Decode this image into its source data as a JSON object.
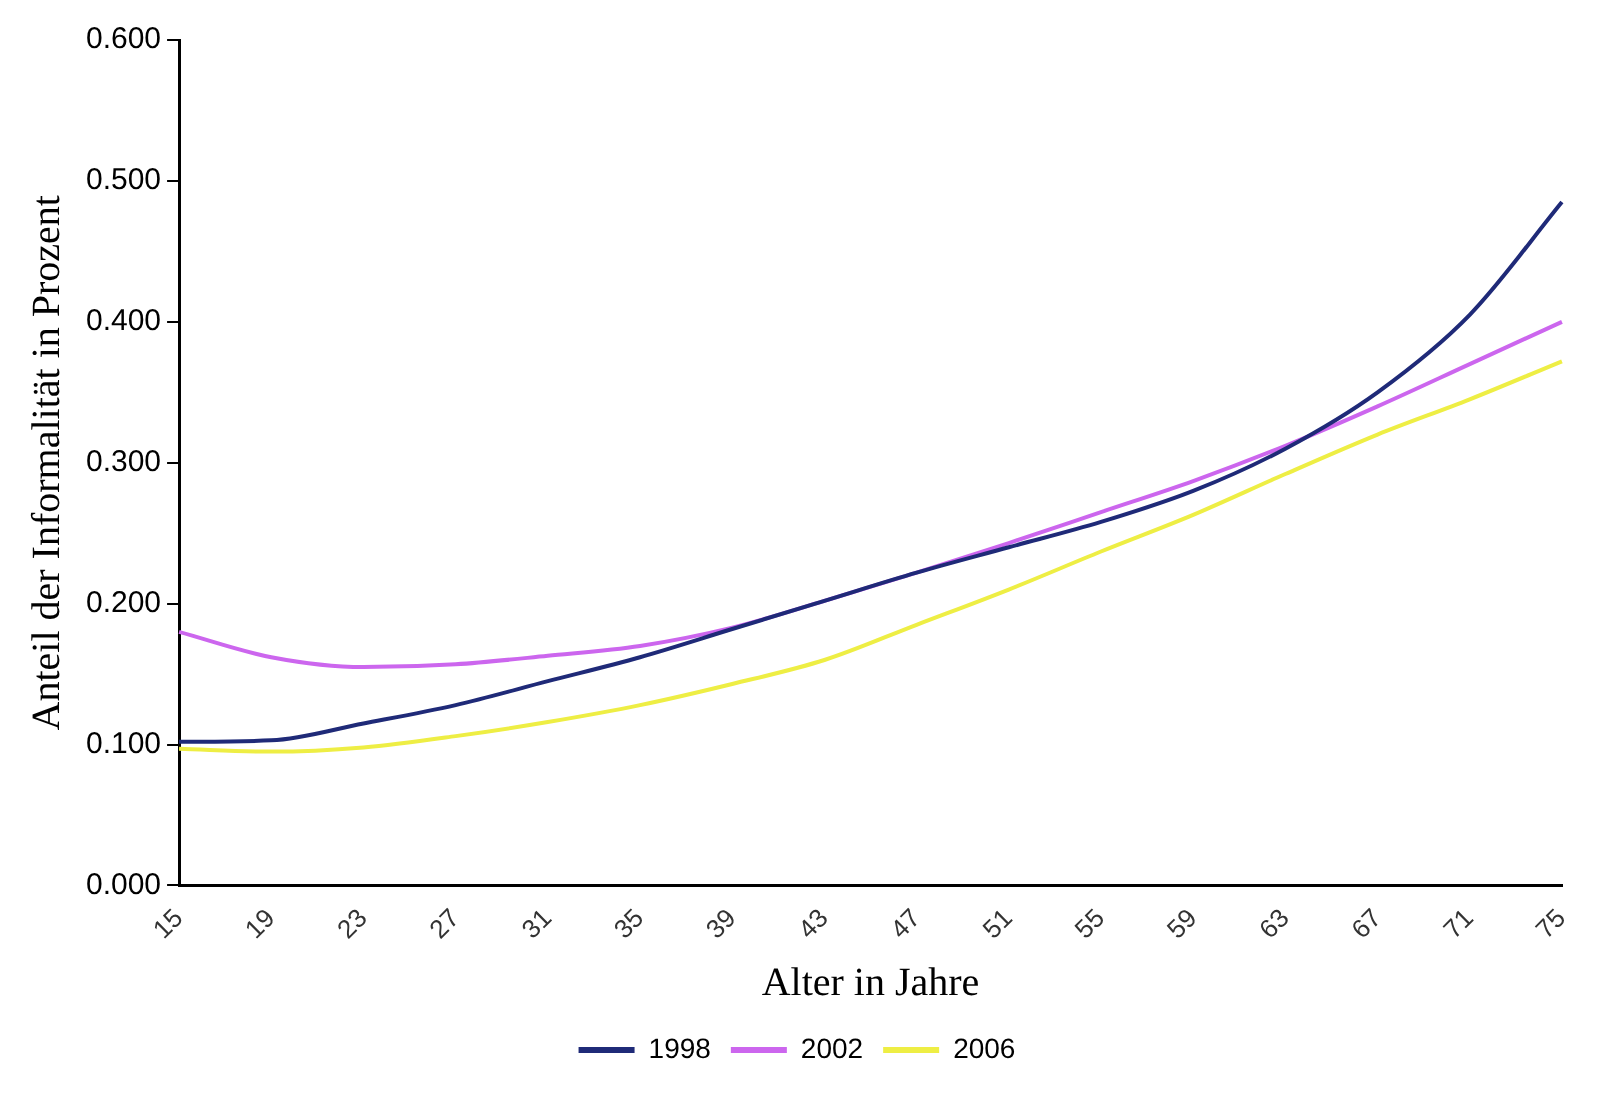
{
  "chart_data": {
    "type": "line",
    "xlabel": "Alter in Jahre",
    "ylabel": "Anteil der Informalität in Prozent",
    "categories": [
      "15",
      "19",
      "23",
      "27",
      "31",
      "35",
      "39",
      "43",
      "47",
      "51",
      "55",
      "59",
      "63",
      "67",
      "71",
      "75"
    ],
    "series": [
      {
        "name": "1998",
        "color": "#1f2a78",
        "values": [
          0.102,
          0.103,
          0.115,
          0.128,
          0.145,
          0.162,
          0.182,
          0.202,
          0.222,
          0.24,
          0.258,
          0.28,
          0.31,
          0.35,
          0.405,
          0.485
        ]
      },
      {
        "name": "2002",
        "color": "#cc66ee",
        "values": [
          0.18,
          0.162,
          0.155,
          0.157,
          0.163,
          0.17,
          0.183,
          0.202,
          0.222,
          0.243,
          0.265,
          0.287,
          0.312,
          0.34,
          0.37,
          0.4
        ]
      },
      {
        "name": "2006",
        "color": "#eeee44",
        "values": [
          0.097,
          0.095,
          0.098,
          0.106,
          0.116,
          0.128,
          0.143,
          0.16,
          0.185,
          0.21,
          0.237,
          0.263,
          0.292,
          0.32,
          0.345,
          0.372
        ]
      }
    ],
    "ylim": [
      0,
      0.6
    ],
    "yticks": [
      {
        "value": 0,
        "label": "0.000"
      },
      {
        "value": 0.1,
        "label": "0.100"
      },
      {
        "value": 0.2,
        "label": "0.200"
      },
      {
        "value": 0.3,
        "label": "0.300"
      },
      {
        "value": 0.4,
        "label": "0.400"
      },
      {
        "value": 0.5,
        "label": "0.500"
      },
      {
        "value": 0.6,
        "label": "0.600"
      }
    ],
    "grid": false,
    "legend": "bottom",
    "marker": "none",
    "line_style": "solid"
  }
}
